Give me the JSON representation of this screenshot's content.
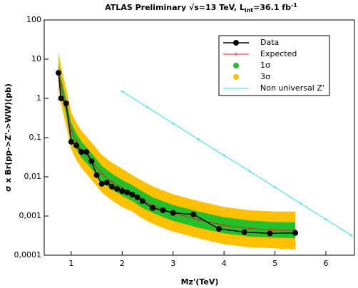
{
  "chart_data": {
    "type": "limit",
    "title": [
      "ATLAS Preliminary √s=13 TeV, L",
      "int",
      "=36.1 fb",
      "-1"
    ],
    "xlabel": "Mz'(TeV)",
    "ylabel": "σ x Br(pp->Z'->WW)(pb)",
    "xlim": [
      0.47,
      6.56
    ],
    "ylim": [
      0.0001,
      100
    ],
    "log_y": true,
    "xticks": [
      1,
      2,
      3,
      4,
      5,
      6
    ],
    "yticks": [
      {
        "value": 0.0001,
        "label": "0,0001"
      },
      {
        "value": 0.001,
        "label": "0,001"
      },
      {
        "value": 0.01,
        "label": "0,01"
      },
      {
        "value": 0.1,
        "label": "0,1"
      },
      1,
      10,
      100
    ],
    "legend": "upper right",
    "series": [
      {
        "name": "3σ",
        "kind": "band",
        "color": "#ffc000",
        "x": [
          0.75,
          0.8,
          0.9,
          1.0,
          1.1,
          1.2,
          1.4,
          1.6,
          1.8,
          2.0,
          2.2,
          2.4,
          2.6,
          2.8,
          3.0,
          3.5,
          4.0,
          4.5,
          5.0,
          5.4
        ],
        "upper": [
          15,
          6.6,
          1.8,
          0.45,
          0.24,
          0.15,
          0.075,
          0.036,
          0.023,
          0.016,
          0.011,
          0.0078,
          0.0057,
          0.0045,
          0.0036,
          0.0024,
          0.0017,
          0.0014,
          0.0013,
          0.0013
        ],
        "lower": [
          1.7,
          0.73,
          0.2,
          0.05,
          0.027,
          0.017,
          0.0083,
          0.004,
          0.0025,
          0.0017,
          0.0013,
          0.00087,
          0.00063,
          0.0005,
          0.0004,
          0.00027,
          0.00019,
          0.00016,
          0.00015,
          0.00014
        ]
      },
      {
        "name": "1σ",
        "kind": "band",
        "color": "#22c02a",
        "x": [
          0.75,
          0.8,
          0.9,
          1.0,
          1.1,
          1.2,
          1.4,
          1.6,
          1.8,
          2.0,
          2.2,
          2.4,
          2.6,
          2.8,
          3.0,
          3.5,
          4.0,
          4.5,
          5.0,
          5.4
        ],
        "upper": [
          8,
          3.5,
          0.96,
          0.24,
          0.13,
          0.08,
          0.04,
          0.019,
          0.012,
          0.0083,
          0.0061,
          0.0042,
          0.003,
          0.0024,
          0.0019,
          0.0013,
          0.00093,
          0.00077,
          0.0007,
          0.00069
        ],
        "lower": [
          3.1,
          1.4,
          0.38,
          0.094,
          0.05,
          0.031,
          0.016,
          0.0075,
          0.0047,
          0.0033,
          0.0024,
          0.0016,
          0.0012,
          0.00094,
          0.00075,
          0.0005,
          0.00036,
          0.0003,
          0.00028,
          0.00027
        ]
      },
      {
        "name": "Expected",
        "kind": "line",
        "color": "#e02020",
        "x": [
          0.75,
          0.8,
          0.9,
          1.0,
          1.1,
          1.2,
          1.4,
          1.6,
          1.8,
          2.0,
          2.2,
          2.4,
          2.6,
          2.8,
          3.0,
          3.5,
          4.0,
          4.5,
          5.0,
          5.4
        ],
        "values": [
          5,
          2.2,
          0.6,
          0.15,
          0.08,
          0.05,
          0.025,
          0.012,
          0.0075,
          0.0052,
          0.0038,
          0.0026,
          0.0019,
          0.0015,
          0.0012,
          0.0008,
          0.00058,
          0.00048,
          0.00044,
          0.00043
        ]
      },
      {
        "name": "Data",
        "kind": "points",
        "color": "#000000",
        "x": [
          0.75,
          0.8,
          0.9,
          1.0,
          1.1,
          1.2,
          1.3,
          1.4,
          1.5,
          1.6,
          1.7,
          1.8,
          1.9,
          2.0,
          2.1,
          2.2,
          2.3,
          2.4,
          2.6,
          2.8,
          3.0,
          3.4,
          3.9,
          4.4,
          4.9,
          5.4
        ],
        "values": [
          4.5,
          1.0,
          0.75,
          0.078,
          0.063,
          0.043,
          0.043,
          0.025,
          0.011,
          0.0066,
          0.0071,
          0.0056,
          0.0049,
          0.0043,
          0.004,
          0.0035,
          0.003,
          0.0024,
          0.0016,
          0.0014,
          0.0012,
          0.0011,
          0.00047,
          0.00039,
          0.00036,
          0.00037
        ]
      },
      {
        "name": "Non universal Z'",
        "kind": "line",
        "color": "#33e0e8",
        "x": [
          2.0,
          2.5,
          3.0,
          3.5,
          4.0,
          4.5,
          5.0,
          5.5,
          6.0,
          6.5
        ],
        "values": [
          1.5,
          0.59,
          0.23,
          0.09,
          0.035,
          0.014,
          0.0054,
          0.0021,
          0.00082,
          0.00032
        ]
      }
    ]
  }
}
